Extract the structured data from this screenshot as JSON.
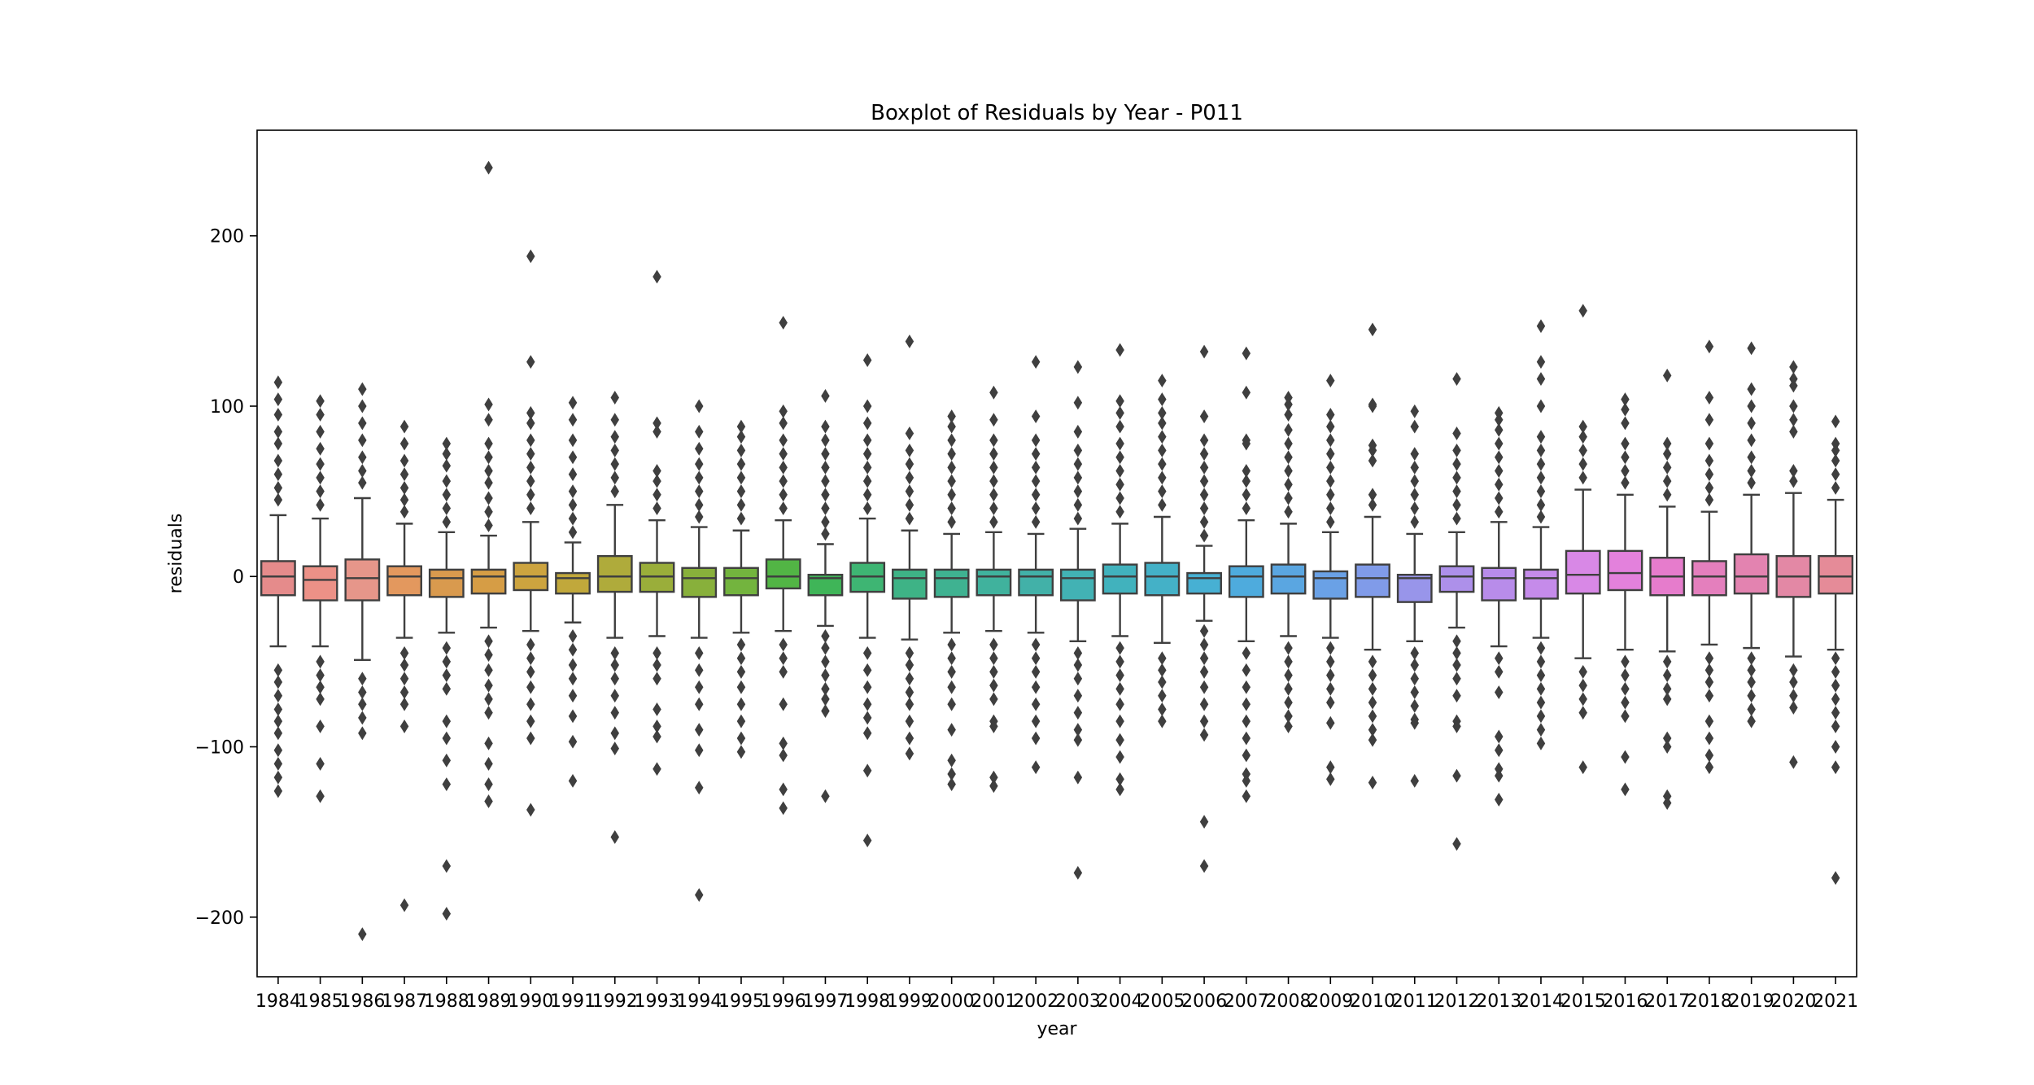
{
  "chart_data": {
    "type": "boxplot",
    "title": "Boxplot of Residuals by Year - P011",
    "xlabel": "year",
    "ylabel": "residuals",
    "ylim": [
      -235,
      262
    ],
    "yticks": [
      -200,
      -100,
      0,
      100,
      200
    ],
    "ytick_labels": [
      "−200",
      "−100",
      "0",
      "100",
      "200"
    ],
    "grid": false,
    "categories": [
      "1984",
      "1985",
      "1986",
      "1987",
      "1988",
      "1989",
      "1990",
      "1991",
      "1992",
      "1993",
      "1994",
      "1995",
      "1996",
      "1997",
      "1998",
      "1999",
      "2000",
      "2001",
      "2002",
      "2003",
      "2004",
      "2005",
      "2006",
      "2007",
      "2008",
      "2009",
      "2010",
      "2011",
      "2012",
      "2013",
      "2014",
      "2015",
      "2016",
      "2017",
      "2018",
      "2019",
      "2020",
      "2021"
    ],
    "colors": [
      "#e58b8b",
      "#ec9187",
      "#e6968a",
      "#e3985e",
      "#d99a4e",
      "#d69d45",
      "#cda43f",
      "#c1a83b",
      "#afab3b",
      "#9aae3a",
      "#88b03b",
      "#73b43e",
      "#52b545",
      "#3fb558",
      "#3eb573",
      "#3eb386",
      "#3fb291",
      "#40b29d",
      "#42b1a8",
      "#42b2b4",
      "#41b2bd",
      "#44b1c7",
      "#47b0d3",
      "#4eabdd",
      "#5aa6e1",
      "#6aa1e6",
      "#809be9",
      "#9895ea",
      "#ad90ea",
      "#b88cea",
      "#c58bea",
      "#d888e6",
      "#e381dc",
      "#e67ccc",
      "#e47fbd",
      "#e383b0",
      "#e388a5",
      "#e58b98"
    ],
    "boxes": [
      {
        "year": "1984",
        "median": 0,
        "q1": -11,
        "q3": 9,
        "whislo": -41,
        "whishi": 36,
        "fliers_low": [
          -55,
          -62,
          -70,
          -78,
          -85,
          -92,
          -102,
          -110,
          -118,
          -126
        ],
        "fliers_high": [
          45,
          52,
          60,
          68,
          78,
          85,
          95,
          104,
          114
        ]
      },
      {
        "year": "1985",
        "median": -2,
        "q1": -14,
        "q3": 6,
        "whislo": -41,
        "whishi": 34,
        "fliers_low": [
          -50,
          -58,
          -65,
          -72,
          -88,
          -110,
          -129
        ],
        "fliers_high": [
          42,
          50,
          58,
          66,
          75,
          85,
          95,
          103
        ]
      },
      {
        "year": "1986",
        "median": -1,
        "q1": -14,
        "q3": 10,
        "whislo": -49,
        "whishi": 46,
        "fliers_low": [
          -60,
          -68,
          -75,
          -83,
          -92,
          -210
        ],
        "fliers_high": [
          55,
          62,
          70,
          80,
          90,
          100,
          110
        ]
      },
      {
        "year": "1987",
        "median": 0,
        "q1": -11,
        "q3": 6,
        "whislo": -36,
        "whishi": 31,
        "fliers_low": [
          -45,
          -52,
          -60,
          -68,
          -75,
          -88,
          -193
        ],
        "fliers_high": [
          38,
          45,
          52,
          60,
          68,
          78,
          88
        ]
      },
      {
        "year": "1988",
        "median": -1,
        "q1": -12,
        "q3": 4,
        "whislo": -33,
        "whishi": 26,
        "fliers_low": [
          -42,
          -50,
          -58,
          -66,
          -85,
          -95,
          -108,
          -122,
          -170,
          -198
        ],
        "fliers_high": [
          32,
          40,
          48,
          56,
          65,
          72,
          78
        ]
      },
      {
        "year": "1989",
        "median": 0,
        "q1": -10,
        "q3": 4,
        "whislo": -30,
        "whishi": 24,
        "fliers_low": [
          -38,
          -46,
          -55,
          -64,
          -72,
          -80,
          -98,
          -110,
          -122,
          -132
        ],
        "fliers_high": [
          30,
          38,
          46,
          55,
          62,
          70,
          78,
          92,
          101,
          240
        ]
      },
      {
        "year": "1990",
        "median": 0,
        "q1": -8,
        "q3": 8,
        "whislo": -32,
        "whishi": 32,
        "fliers_low": [
          -40,
          -48,
          -56,
          -65,
          -75,
          -85,
          -95,
          -137
        ],
        "fliers_high": [
          40,
          48,
          56,
          64,
          72,
          80,
          90,
          96,
          126,
          188
        ]
      },
      {
        "year": "1991",
        "median": -1,
        "q1": -10,
        "q3": 2,
        "whislo": -27,
        "whishi": 20,
        "fliers_low": [
          -35,
          -43,
          -52,
          -60,
          -70,
          -82,
          -97,
          -120
        ],
        "fliers_high": [
          26,
          34,
          42,
          50,
          60,
          70,
          80,
          92,
          102
        ]
      },
      {
        "year": "1992",
        "median": 0,
        "q1": -9,
        "q3": 12,
        "whislo": -36,
        "whishi": 42,
        "fliers_low": [
          -45,
          -52,
          -60,
          -70,
          -80,
          -92,
          -101,
          -153
        ],
        "fliers_high": [
          50,
          58,
          66,
          74,
          82,
          92,
          105
        ]
      },
      {
        "year": "1993",
        "median": 0,
        "q1": -9,
        "q3": 8,
        "whislo": -35,
        "whishi": 33,
        "fliers_low": [
          -45,
          -52,
          -60,
          -78,
          -88,
          -94,
          -113
        ],
        "fliers_high": [
          40,
          48,
          56,
          62,
          85,
          90,
          176
        ]
      },
      {
        "year": "1994",
        "median": -1,
        "q1": -12,
        "q3": 5,
        "whislo": -36,
        "whishi": 29,
        "fliers_low": [
          -45,
          -55,
          -65,
          -75,
          -90,
          -102,
          -124,
          -187
        ],
        "fliers_high": [
          35,
          42,
          50,
          58,
          66,
          75,
          85,
          100
        ]
      },
      {
        "year": "1995",
        "median": -1,
        "q1": -11,
        "q3": 5,
        "whislo": -33,
        "whishi": 27,
        "fliers_low": [
          -40,
          -48,
          -56,
          -65,
          -75,
          -85,
          -95,
          -103
        ],
        "fliers_high": [
          34,
          42,
          50,
          58,
          66,
          74,
          82,
          88
        ]
      },
      {
        "year": "1996",
        "median": 0,
        "q1": -7,
        "q3": 10,
        "whislo": -32,
        "whishi": 33,
        "fliers_low": [
          -40,
          -48,
          -56,
          -75,
          -98,
          -105,
          -125,
          -136
        ],
        "fliers_high": [
          40,
          48,
          56,
          64,
          72,
          80,
          90,
          97,
          149
        ]
      },
      {
        "year": "1997",
        "median": -1,
        "q1": -11,
        "q3": 1,
        "whislo": -29,
        "whishi": 19,
        "fliers_low": [
          -35,
          -42,
          -50,
          -58,
          -66,
          -72,
          -79,
          -129
        ],
        "fliers_high": [
          25,
          32,
          40,
          48,
          56,
          64,
          72,
          80,
          88,
          106
        ]
      },
      {
        "year": "1998",
        "median": 0,
        "q1": -9,
        "q3": 8,
        "whislo": -36,
        "whishi": 34,
        "fliers_low": [
          -45,
          -55,
          -65,
          -75,
          -83,
          -92,
          -114,
          -155
        ],
        "fliers_high": [
          40,
          48,
          56,
          64,
          72,
          80,
          90,
          100,
          127
        ]
      },
      {
        "year": "1999",
        "median": -1,
        "q1": -13,
        "q3": 4,
        "whislo": -37,
        "whishi": 27,
        "fliers_low": [
          -45,
          -52,
          -60,
          -68,
          -75,
          -85,
          -95,
          -104
        ],
        "fliers_high": [
          34,
          42,
          50,
          58,
          66,
          74,
          84,
          138
        ]
      },
      {
        "year": "2000",
        "median": -1,
        "q1": -12,
        "q3": 4,
        "whislo": -33,
        "whishi": 25,
        "fliers_low": [
          -40,
          -48,
          -56,
          -65,
          -75,
          -90,
          -108,
          -116,
          -122
        ],
        "fliers_high": [
          32,
          40,
          48,
          56,
          64,
          72,
          80,
          88,
          94
        ]
      },
      {
        "year": "2001",
        "median": 0,
        "q1": -11,
        "q3": 4,
        "whislo": -32,
        "whishi": 26,
        "fliers_low": [
          -40,
          -48,
          -56,
          -64,
          -72,
          -85,
          -88,
          -118,
          -123
        ],
        "fliers_high": [
          32,
          40,
          48,
          56,
          64,
          72,
          80,
          92,
          108
        ]
      },
      {
        "year": "2002",
        "median": 0,
        "q1": -11,
        "q3": 4,
        "whislo": -33,
        "whishi": 25,
        "fliers_low": [
          -40,
          -48,
          -56,
          -65,
          -75,
          -85,
          -95,
          -112
        ],
        "fliers_high": [
          32,
          40,
          48,
          56,
          64,
          72,
          80,
          94,
          126
        ]
      },
      {
        "year": "2003",
        "median": -1,
        "q1": -14,
        "q3": 4,
        "whislo": -38,
        "whishi": 28,
        "fliers_low": [
          -45,
          -52,
          -60,
          -70,
          -80,
          -90,
          -96,
          -118,
          -174
        ],
        "fliers_high": [
          34,
          42,
          50,
          58,
          66,
          74,
          85,
          102,
          123
        ]
      },
      {
        "year": "2004",
        "median": 0,
        "q1": -10,
        "q3": 7,
        "whislo": -35,
        "whishi": 31,
        "fliers_low": [
          -42,
          -50,
          -58,
          -66,
          -75,
          -85,
          -96,
          -106,
          -119,
          -125
        ],
        "fliers_high": [
          38,
          46,
          54,
          62,
          70,
          78,
          88,
          96,
          103,
          133
        ]
      },
      {
        "year": "2005",
        "median": 0,
        "q1": -11,
        "q3": 8,
        "whislo": -39,
        "whishi": 35,
        "fliers_low": [
          -48,
          -55,
          -62,
          -70,
          -78,
          -85
        ],
        "fliers_high": [
          42,
          50,
          58,
          66,
          74,
          82,
          90,
          96,
          104,
          115
        ]
      },
      {
        "year": "2006",
        "median": -1,
        "q1": -10,
        "q3": 2,
        "whislo": -26,
        "whishi": 18,
        "fliers_low": [
          -32,
          -40,
          -48,
          -56,
          -65,
          -75,
          -85,
          -93,
          -144,
          -170
        ],
        "fliers_high": [
          24,
          32,
          40,
          48,
          56,
          64,
          72,
          80,
          94,
          132
        ]
      },
      {
        "year": "2007",
        "median": 0,
        "q1": -12,
        "q3": 6,
        "whislo": -38,
        "whishi": 33,
        "fliers_low": [
          -45,
          -55,
          -65,
          -75,
          -85,
          -95,
          -105,
          -116,
          -120,
          -129
        ],
        "fliers_high": [
          40,
          48,
          56,
          62,
          78,
          80,
          108,
          131
        ]
      },
      {
        "year": "2008",
        "median": 0,
        "q1": -10,
        "q3": 7,
        "whislo": -35,
        "whishi": 31,
        "fliers_low": [
          -42,
          -50,
          -58,
          -66,
          -74,
          -82,
          -88
        ],
        "fliers_high": [
          38,
          46,
          54,
          62,
          70,
          78,
          86,
          95,
          101,
          105
        ]
      },
      {
        "year": "2009",
        "median": -1,
        "q1": -13,
        "q3": 3,
        "whislo": -36,
        "whishi": 26,
        "fliers_low": [
          -42,
          -50,
          -58,
          -66,
          -74,
          -86,
          -112,
          -119
        ],
        "fliers_high": [
          32,
          40,
          48,
          56,
          64,
          72,
          80,
          88,
          95,
          115
        ]
      },
      {
        "year": "2010",
        "median": -1,
        "q1": -12,
        "q3": 7,
        "whislo": -43,
        "whishi": 35,
        "fliers_low": [
          -50,
          -58,
          -66,
          -74,
          -82,
          -90,
          -96,
          -121
        ],
        "fliers_high": [
          42,
          48,
          68,
          74,
          77,
          100,
          101,
          145
        ]
      },
      {
        "year": "2011",
        "median": -1,
        "q1": -15,
        "q3": 1,
        "whislo": -38,
        "whishi": 25,
        "fliers_low": [
          -45,
          -52,
          -60,
          -68,
          -76,
          -84,
          -86,
          -120
        ],
        "fliers_high": [
          32,
          40,
          48,
          56,
          64,
          72,
          88,
          97
        ]
      },
      {
        "year": "2012",
        "median": 0,
        "q1": -9,
        "q3": 6,
        "whislo": -30,
        "whishi": 26,
        "fliers_low": [
          -38,
          -45,
          -52,
          -60,
          -70,
          -85,
          -88,
          -117,
          -157
        ],
        "fliers_high": [
          34,
          42,
          50,
          58,
          66,
          74,
          84,
          116
        ]
      },
      {
        "year": "2013",
        "median": -1,
        "q1": -14,
        "q3": 5,
        "whislo": -41,
        "whishi": 32,
        "fliers_low": [
          -48,
          -56,
          -68,
          -94,
          -102,
          -113,
          -117,
          -131
        ],
        "fliers_high": [
          38,
          46,
          54,
          62,
          70,
          78,
          86,
          92,
          96
        ]
      },
      {
        "year": "2014",
        "median": -1,
        "q1": -13,
        "q3": 4,
        "whislo": -36,
        "whishi": 29,
        "fliers_low": [
          -42,
          -50,
          -58,
          -66,
          -74,
          -82,
          -90,
          -98
        ],
        "fliers_high": [
          35,
          42,
          50,
          58,
          66,
          74,
          82,
          100,
          116,
          126,
          147
        ]
      },
      {
        "year": "2015",
        "median": 1,
        "q1": -10,
        "q3": 15,
        "whislo": -48,
        "whishi": 51,
        "fliers_low": [
          -56,
          -64,
          -72,
          -80,
          -112
        ],
        "fliers_high": [
          58,
          66,
          74,
          82,
          88,
          156
        ]
      },
      {
        "year": "2016",
        "median": 2,
        "q1": -8,
        "q3": 15,
        "whislo": -43,
        "whishi": 48,
        "fliers_low": [
          -50,
          -58,
          -66,
          -74,
          -82,
          -106,
          -125
        ],
        "fliers_high": [
          55,
          62,
          70,
          78,
          90,
          98,
          104
        ]
      },
      {
        "year": "2017",
        "median": 0,
        "q1": -11,
        "q3": 11,
        "whislo": -44,
        "whishi": 41,
        "fliers_low": [
          -50,
          -58,
          -66,
          -72,
          -95,
          -100,
          -129,
          -133
        ],
        "fliers_high": [
          48,
          56,
          64,
          72,
          78,
          118
        ]
      },
      {
        "year": "2018",
        "median": 0,
        "q1": -11,
        "q3": 9,
        "whislo": -40,
        "whishi": 38,
        "fliers_low": [
          -48,
          -55,
          -62,
          -70,
          -85,
          -95,
          -105,
          -112
        ],
        "fliers_high": [
          45,
          52,
          60,
          68,
          78,
          92,
          105,
          135
        ]
      },
      {
        "year": "2019",
        "median": 0,
        "q1": -10,
        "q3": 13,
        "whislo": -42,
        "whishi": 48,
        "fliers_low": [
          -48,
          -55,
          -62,
          -70,
          -78,
          -85
        ],
        "fliers_high": [
          55,
          62,
          70,
          80,
          90,
          100,
          110,
          134
        ]
      },
      {
        "year": "2020",
        "median": 0,
        "q1": -12,
        "q3": 12,
        "whislo": -47,
        "whishi": 49,
        "fliers_low": [
          -55,
          -62,
          -70,
          -77,
          -109
        ],
        "fliers_high": [
          56,
          62,
          85,
          92,
          100,
          112,
          116,
          123
        ]
      },
      {
        "year": "2021",
        "median": 0,
        "q1": -10,
        "q3": 12,
        "whislo": -43,
        "whishi": 45,
        "fliers_low": [
          -48,
          -56,
          -64,
          -72,
          -80,
          -88,
          -100,
          -112,
          -177
        ],
        "fliers_high": [
          52,
          60,
          68,
          74,
          78,
          91
        ]
      }
    ]
  }
}
